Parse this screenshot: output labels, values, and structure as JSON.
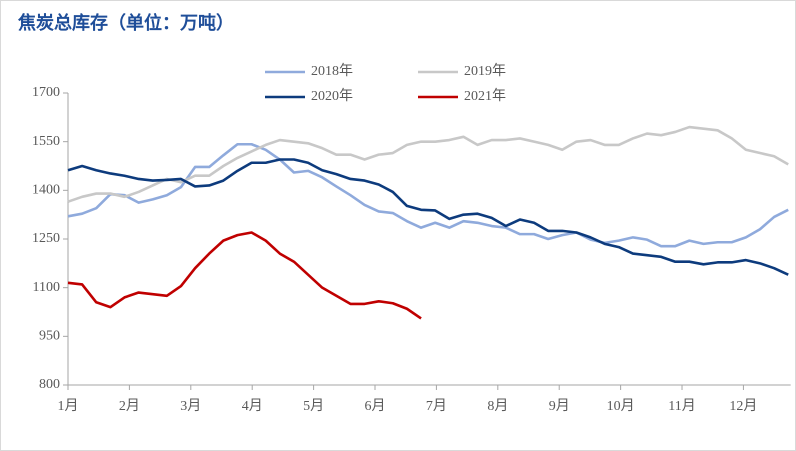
{
  "chart_data": {
    "type": "line",
    "title": "焦炭总库存（单位：万吨）",
    "x": [
      1,
      1.23,
      1.46,
      1.69,
      1.92,
      2.15,
      2.38,
      2.61,
      2.84,
      3.07,
      3.3,
      3.53,
      3.76,
      3.99,
      4.22,
      4.45,
      4.68,
      4.91,
      5.14,
      5.37,
      5.6,
      5.83,
      6.06,
      6.29,
      6.52,
      6.75,
      6.98,
      7.21,
      7.44,
      7.67,
      7.9,
      8.13,
      8.36,
      8.59,
      8.82,
      9.05,
      9.28,
      9.51,
      9.74,
      9.97,
      10.2,
      10.43,
      10.66,
      10.89,
      11.12,
      11.35,
      11.58,
      11.81,
      12.04,
      12.27,
      12.5,
      12.73
    ],
    "series": [
      {
        "name": "2018年",
        "color": "#8faadc",
        "values": [
          1320,
          1328,
          1345,
          1388,
          1385,
          1362,
          1372,
          1385,
          1410,
          1472,
          1472,
          1508,
          1542,
          1542,
          1525,
          1495,
          1455,
          1460,
          1440,
          1412,
          1385,
          1355,
          1335,
          1330,
          1305,
          1285,
          1300,
          1285,
          1305,
          1300,
          1290,
          1285,
          1265,
          1265,
          1250,
          1262,
          1270,
          1248,
          1238,
          1245,
          1255,
          1248,
          1228,
          1228,
          1245,
          1235,
          1240,
          1240,
          1255,
          1280,
          1318,
          1340
        ]
      },
      {
        "name": "2019年",
        "color": "#c8c8c8",
        "values": [
          1365,
          1380,
          1390,
          1390,
          1380,
          1395,
          1415,
          1435,
          1425,
          1445,
          1445,
          1475,
          1500,
          1520,
          1540,
          1555,
          1550,
          1545,
          1530,
          1510,
          1510,
          1495,
          1510,
          1515,
          1540,
          1550,
          1550,
          1555,
          1565,
          1540,
          1555,
          1555,
          1560,
          1550,
          1540,
          1525,
          1550,
          1555,
          1540,
          1540,
          1560,
          1575,
          1570,
          1580,
          1595,
          1590,
          1585,
          1560,
          1525,
          1515,
          1505,
          1480
        ]
      },
      {
        "name": "2020年",
        "color": "#0d3b7d",
        "values": [
          1462,
          1475,
          1462,
          1452,
          1445,
          1435,
          1430,
          1432,
          1435,
          1412,
          1415,
          1430,
          1460,
          1485,
          1485,
          1495,
          1495,
          1485,
          1462,
          1450,
          1435,
          1430,
          1418,
          1395,
          1352,
          1340,
          1338,
          1312,
          1325,
          1328,
          1315,
          1290,
          1310,
          1300,
          1275,
          1275,
          1270,
          1255,
          1235,
          1225,
          1205,
          1200,
          1195,
          1180,
          1180,
          1172,
          1178,
          1178,
          1185,
          1175,
          1160,
          1140
        ]
      },
      {
        "name": "2021年",
        "color": "#c00000",
        "values": [
          1115,
          1110,
          1055,
          1040,
          1070,
          1085,
          1080,
          1075,
          1105,
          1160,
          1205,
          1245,
          1262,
          1270,
          1245,
          1205,
          1180,
          1140,
          1100,
          1075,
          1050,
          1050,
          1058,
          1052,
          1035,
          1005,
          null,
          null,
          null,
          null,
          null,
          null,
          null,
          null,
          null,
          null,
          null,
          null,
          null,
          null,
          null,
          null,
          null,
          null,
          null,
          null,
          null,
          null,
          null,
          null,
          null,
          null
        ]
      }
    ],
    "xlim": [
      1,
      12.77
    ],
    "xticks": [
      {
        "value": 1,
        "label": "1月"
      },
      {
        "value": 2,
        "label": "2月"
      },
      {
        "value": 3,
        "label": "3月"
      },
      {
        "value": 4,
        "label": "4月"
      },
      {
        "value": 5,
        "label": "5月"
      },
      {
        "value": 6,
        "label": "6月"
      },
      {
        "value": 7,
        "label": "7月"
      },
      {
        "value": 8,
        "label": "8月"
      },
      {
        "value": 9,
        "label": "9月"
      },
      {
        "value": 10,
        "label": "10月"
      },
      {
        "value": 11,
        "label": "11月"
      },
      {
        "value": 12,
        "label": "12月"
      }
    ],
    "ylim": [
      800,
      1700
    ],
    "yticks": [
      800,
      950,
      1100,
      1250,
      1400,
      1550,
      1700
    ],
    "grid": false
  }
}
